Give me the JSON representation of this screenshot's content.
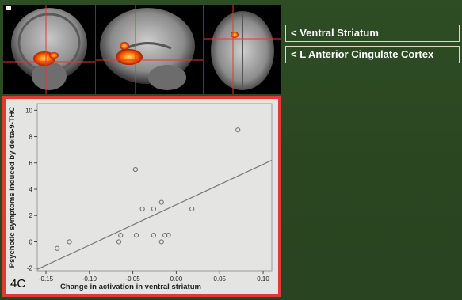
{
  "labels": {
    "region1": "< Ventral Striatum",
    "region2": "< L Anterior Cingulate Cortex"
  },
  "panel_tag": "4C",
  "colors": {
    "background": "#2b4822",
    "frame": "#e03a33",
    "plot_bg": "#e4e4e2",
    "activation": "#ff6a00"
  },
  "chart_data": {
    "type": "scatter",
    "title": "",
    "xlabel": "Change in activation in ventral striatum",
    "ylabel": "Psychotic symptoms induced by delta-9-THC",
    "xlim": [
      -0.16,
      0.11
    ],
    "ylim": [
      -2.2,
      10.5
    ],
    "xticks": [
      -0.15,
      -0.1,
      -0.05,
      0.0,
      0.05,
      0.1
    ],
    "xtick_labels": [
      "-0.15",
      "-0.10",
      "-0.05",
      "0.00",
      "0.05",
      "0.10"
    ],
    "yticks": [
      -2,
      0,
      2,
      4,
      6,
      8,
      10
    ],
    "ytick_labels": [
      "-2",
      "0",
      "2",
      "4",
      "6",
      "8",
      "10"
    ],
    "grid": false,
    "points": [
      {
        "x": -0.137,
        "y": -0.5
      },
      {
        "x": -0.123,
        "y": 0.0
      },
      {
        "x": -0.066,
        "y": 0.0
      },
      {
        "x": -0.064,
        "y": 0.5
      },
      {
        "x": -0.047,
        "y": 5.5
      },
      {
        "x": -0.046,
        "y": 0.5
      },
      {
        "x": -0.039,
        "y": 2.5
      },
      {
        "x": -0.026,
        "y": 2.5
      },
      {
        "x": -0.026,
        "y": 0.5
      },
      {
        "x": -0.017,
        "y": 3.0
      },
      {
        "x": -0.017,
        "y": 0.0
      },
      {
        "x": -0.013,
        "y": 0.5
      },
      {
        "x": -0.009,
        "y": 0.5
      },
      {
        "x": 0.018,
        "y": 2.5
      },
      {
        "x": 0.071,
        "y": 8.5
      }
    ],
    "fit_line": {
      "x": [
        -0.16,
        0.11
      ],
      "y": [
        -2.1,
        6.2
      ]
    }
  }
}
